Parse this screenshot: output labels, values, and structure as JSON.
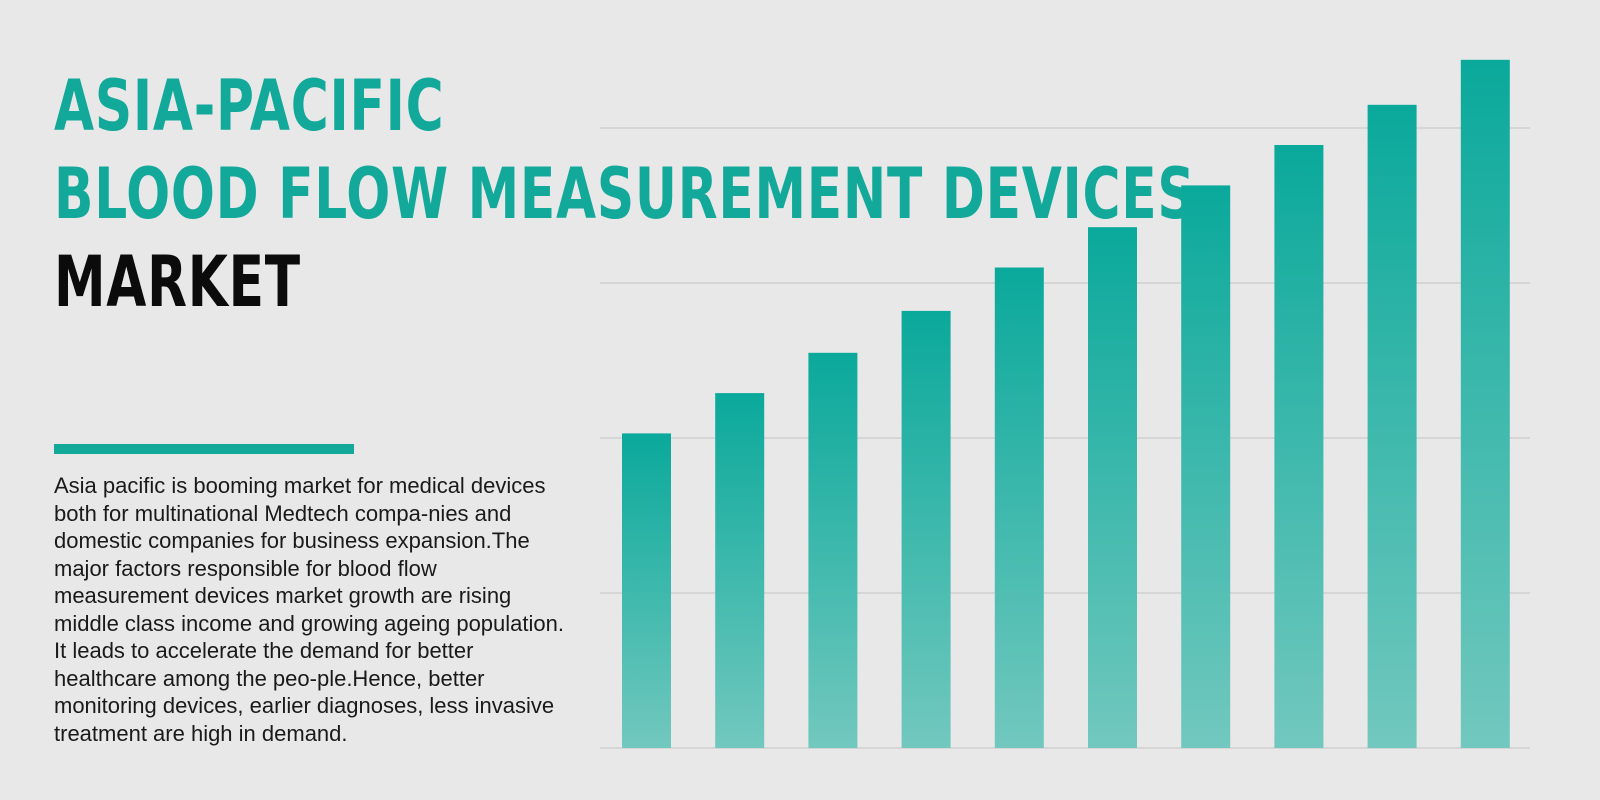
{
  "title": {
    "line1": "ASIA-PACIFIC",
    "line2": "BLOOD FLOW MEASUREMENT DEVICES",
    "line3": "MARKET"
  },
  "description": "Asia pacific is booming market for medical devices both for multinational Medtech compa-nies and domestic companies for business expansion.The major factors responsible for blood flow measurement devices market growth are rising middle class income and growing ageing population. It leads to accelerate the demand for better healthcare among the peo-ple.Hence, better monitoring devices, earlier diagnoses, less invasive treatment are high in demand.",
  "colors": {
    "accent": "#12a99b",
    "bar_top": "#0aa99b",
    "bar_bottom": "#72c8be",
    "gridline": "#cfcfcf",
    "background": "#e8e8e8"
  },
  "chart_data": {
    "type": "bar",
    "title": "",
    "xlabel": "",
    "ylabel": "",
    "axis_labels_shown": false,
    "grid": "horizontal",
    "ylim": [
      0,
      4.5
    ],
    "gridline_values": [
      0,
      1,
      2,
      3,
      4
    ],
    "categories": [
      "",
      "",
      "",
      "",
      "",
      "",
      "",
      "",
      "",
      ""
    ],
    "values": [
      2.03,
      2.29,
      2.55,
      2.82,
      3.1,
      3.36,
      3.63,
      3.89,
      4.15,
      4.44
    ]
  }
}
